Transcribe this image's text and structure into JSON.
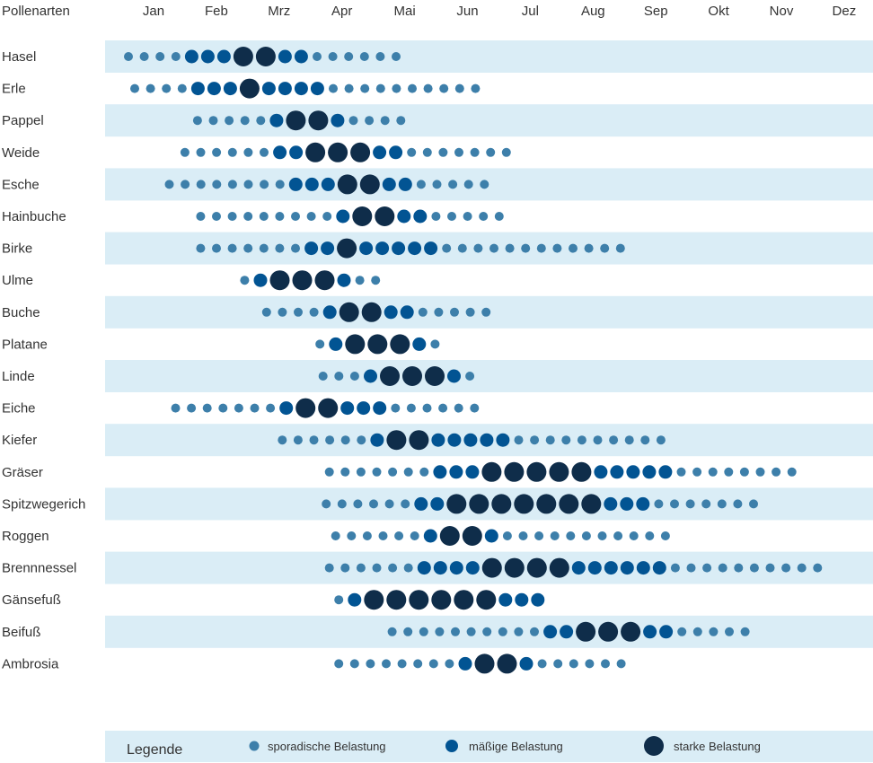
{
  "colors": {
    "band": "#daedf6",
    "sporadic": "#3d7faa",
    "moderate": "#025493",
    "strong": "#0f2d4a"
  },
  "chart_data": {
    "type": "scatter",
    "header_label": "Pollenarten",
    "months": [
      "Jan",
      "Feb",
      "Mrz",
      "Apr",
      "Mai",
      "Jun",
      "Jul",
      "Aug",
      "Sep",
      "Okt",
      "Nov",
      "Dez"
    ],
    "levels": {
      "1": "sporadische Belastung",
      "2": "mäßige Belastung",
      "3": "starke Belastung"
    },
    "legend": {
      "title": "Legende",
      "items": [
        {
          "level": 1,
          "label": "sporadische Belastung"
        },
        {
          "level": 2,
          "label": "mäßige Belastung"
        },
        {
          "level": 3,
          "label": "starke Belastung"
        }
      ]
    },
    "series": [
      {
        "name": "Hasel",
        "start": 0.1,
        "levels": [
          1,
          1,
          1,
          1,
          2,
          2,
          2,
          3,
          3,
          2,
          2,
          1,
          1,
          1,
          1,
          1,
          1
        ]
      },
      {
        "name": "Erle",
        "start": 0.2,
        "levels": [
          1,
          1,
          1,
          1,
          2,
          2,
          2,
          3,
          2,
          2,
          2,
          2,
          1,
          1,
          1,
          1,
          1,
          1,
          1,
          1,
          1,
          1
        ]
      },
      {
        "name": "Pappel",
        "start": 1.2,
        "levels": [
          1,
          1,
          1,
          1,
          1,
          2,
          3,
          3,
          2,
          1,
          1,
          1,
          1
        ]
      },
      {
        "name": "Weide",
        "start": 1.0,
        "levels": [
          1,
          1,
          1,
          1,
          1,
          1,
          2,
          2,
          3,
          3,
          3,
          2,
          2,
          1,
          1,
          1,
          1,
          1,
          1,
          1
        ]
      },
      {
        "name": "Esche",
        "start": 0.75,
        "levels": [
          1,
          1,
          1,
          1,
          1,
          1,
          1,
          1,
          2,
          2,
          2,
          3,
          3,
          2,
          2,
          1,
          1,
          1,
          1,
          1
        ]
      },
      {
        "name": "Hainbuche",
        "start": 1.25,
        "levels": [
          1,
          1,
          1,
          1,
          1,
          1,
          1,
          1,
          1,
          2,
          3,
          3,
          2,
          2,
          1,
          1,
          1,
          1,
          1
        ]
      },
      {
        "name": "Birke",
        "start": 1.25,
        "levels": [
          1,
          1,
          1,
          1,
          1,
          1,
          1,
          2,
          2,
          3,
          2,
          2,
          2,
          2,
          2,
          1,
          1,
          1,
          1,
          1,
          1,
          1,
          1,
          1,
          1,
          1,
          1
        ]
      },
      {
        "name": "Ulme",
        "start": 1.95,
        "levels": [
          1,
          2,
          3,
          3,
          3,
          2,
          1,
          1
        ]
      },
      {
        "name": "Buche",
        "start": 2.3,
        "levels": [
          1,
          1,
          1,
          1,
          2,
          3,
          3,
          2,
          2,
          1,
          1,
          1,
          1,
          1
        ]
      },
      {
        "name": "Platane",
        "start": 3.15,
        "levels": [
          1,
          2,
          3,
          3,
          3,
          2,
          1
        ]
      },
      {
        "name": "Linde",
        "start": 3.2,
        "levels": [
          1,
          1,
          1,
          2,
          3,
          3,
          3,
          2,
          1
        ]
      },
      {
        "name": "Eiche",
        "start": 0.85,
        "levels": [
          1,
          1,
          1,
          1,
          1,
          1,
          1,
          2,
          3,
          3,
          2,
          2,
          2,
          1,
          1,
          1,
          1,
          1,
          1
        ]
      },
      {
        "name": "Kiefer",
        "start": 2.55,
        "levels": [
          1,
          1,
          1,
          1,
          1,
          1,
          2,
          3,
          3,
          2,
          2,
          2,
          2,
          2,
          1,
          1,
          1,
          1,
          1,
          1,
          1,
          1,
          1,
          1
        ]
      },
      {
        "name": "Gräser",
        "start": 3.3,
        "levels": [
          1,
          1,
          1,
          1,
          1,
          1,
          1,
          2,
          2,
          2,
          3,
          3,
          3,
          3,
          3,
          2,
          2,
          2,
          2,
          2,
          1,
          1,
          1,
          1,
          1,
          1,
          1,
          1
        ]
      },
      {
        "name": "Spitzwegerich",
        "start": 3.25,
        "levels": [
          1,
          1,
          1,
          1,
          1,
          1,
          2,
          2,
          3,
          3,
          3,
          3,
          3,
          3,
          3,
          2,
          2,
          2,
          1,
          1,
          1,
          1,
          1,
          1,
          1
        ]
      },
      {
        "name": "Roggen",
        "start": 3.4,
        "levels": [
          1,
          1,
          1,
          1,
          1,
          1,
          2,
          3,
          3,
          2,
          1,
          1,
          1,
          1,
          1,
          1,
          1,
          1,
          1,
          1,
          1
        ]
      },
      {
        "name": "Brennnessel",
        "start": 3.3,
        "levels": [
          1,
          1,
          1,
          1,
          1,
          1,
          2,
          2,
          2,
          2,
          3,
          3,
          3,
          3,
          2,
          2,
          2,
          2,
          2,
          2,
          1,
          1,
          1,
          1,
          1,
          1,
          1,
          1,
          1,
          1
        ]
      },
      {
        "name": "Gänsefuß",
        "start": 3.45,
        "levels": [
          1,
          2,
          3,
          3,
          3,
          3,
          3,
          3,
          2,
          2,
          2
        ]
      },
      {
        "name": "Beifuß",
        "start": 4.3,
        "levels": [
          1,
          1,
          1,
          1,
          1,
          1,
          1,
          1,
          1,
          1,
          2,
          2,
          3,
          3,
          3,
          2,
          2,
          1,
          1,
          1,
          1,
          1
        ]
      },
      {
        "name": "Ambrosia",
        "start": 3.45,
        "levels": [
          1,
          1,
          1,
          1,
          1,
          1,
          1,
          1,
          2,
          3,
          3,
          2,
          1,
          1,
          1,
          1,
          1,
          1
        ]
      }
    ]
  }
}
